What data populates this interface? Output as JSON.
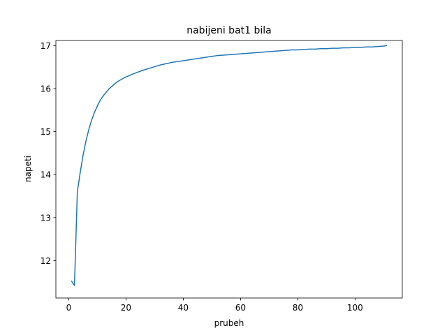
{
  "chart_data": {
    "type": "line",
    "title": "nabijeni bat1 bila",
    "xlabel": "prubeh",
    "ylabel": "napeti",
    "xlim": [
      -4.5,
      116.5
    ],
    "ylim": [
      11.13,
      17.12
    ],
    "xticks": [
      0,
      20,
      40,
      60,
      80,
      100
    ],
    "yticks": [
      12,
      13,
      14,
      15,
      16,
      17
    ],
    "grid": false,
    "color": "#1f77b4",
    "series": [
      {
        "x": [
          1,
          2,
          3,
          4,
          5,
          6,
          7,
          8,
          9,
          10,
          11,
          12,
          13,
          14,
          15,
          16,
          17,
          18,
          19,
          20,
          22,
          24,
          26,
          28,
          30,
          32,
          34,
          36,
          38,
          40,
          42,
          44,
          46,
          48,
          50,
          52,
          54,
          56,
          58,
          60,
          62,
          64,
          66,
          68,
          70,
          72,
          74,
          76,
          78,
          80,
          82,
          84,
          86,
          88,
          90,
          92,
          94,
          96,
          98,
          100,
          102,
          104,
          106,
          108,
          110,
          111
        ],
        "y": [
          11.52,
          11.42,
          13.6,
          14.05,
          14.45,
          14.78,
          15.05,
          15.27,
          15.45,
          15.6,
          15.73,
          15.83,
          15.91,
          15.99,
          16.05,
          16.11,
          16.16,
          16.2,
          16.24,
          16.27,
          16.33,
          16.38,
          16.43,
          16.47,
          16.51,
          16.55,
          16.58,
          16.61,
          16.63,
          16.65,
          16.67,
          16.69,
          16.71,
          16.73,
          16.75,
          16.77,
          16.78,
          16.79,
          16.8,
          16.81,
          16.82,
          16.83,
          16.84,
          16.85,
          16.86,
          16.87,
          16.88,
          16.89,
          16.9,
          16.9,
          16.91,
          16.92,
          16.92,
          16.93,
          16.93,
          16.94,
          16.94,
          16.95,
          16.95,
          16.96,
          16.96,
          16.97,
          16.97,
          16.98,
          16.99,
          17.0
        ]
      }
    ]
  }
}
